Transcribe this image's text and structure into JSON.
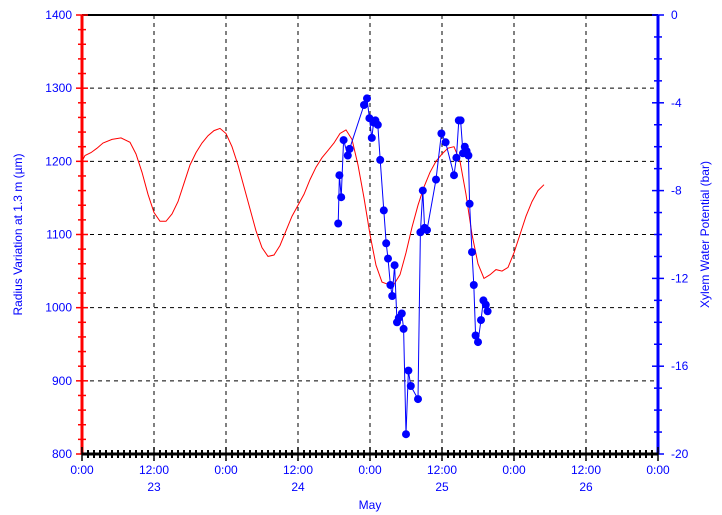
{
  "chart_data": {
    "type": "line",
    "title": "",
    "xlabel": "May",
    "ylabel_left": "Radius Variation at 1.3 m (µm)",
    "ylabel_right": "Xylem Water Potential  (bar)",
    "x_range_hours": [
      0,
      96
    ],
    "y_left_range": [
      800,
      1400
    ],
    "y_right_range": [
      -20,
      0
    ],
    "y_left_ticks": [
      "800",
      "900",
      "1000",
      "1100",
      "1200",
      "1300",
      "1400"
    ],
    "y_right_ticks": [
      "-20",
      "-16",
      "-12",
      "-8",
      "-4",
      "0"
    ],
    "x_ticks": [
      {
        "h": 0,
        "time": "0:00",
        "day": ""
      },
      {
        "h": 12,
        "time": "12:00",
        "day": "23"
      },
      {
        "h": 24,
        "time": "0:00",
        "day": ""
      },
      {
        "h": 36,
        "time": "12:00",
        "day": "24"
      },
      {
        "h": 48,
        "time": "0:00",
        "day": ""
      },
      {
        "h": 60,
        "time": "12:00",
        "day": "25"
      },
      {
        "h": 72,
        "time": "0:00",
        "day": ""
      },
      {
        "h": 84,
        "time": "12:00",
        "day": "26"
      },
      {
        "h": 96,
        "time": "0:00",
        "day": ""
      }
    ],
    "grid": true,
    "colors": {
      "left_axis": "#ff0000",
      "right_axis": "#0000ff",
      "radius_series": "#ff0000",
      "potential_series": "#0000ff",
      "grid": "#000000"
    },
    "series": [
      {
        "axis": "left",
        "color": "#ff0000",
        "points": [
          [
            0,
            1200
          ],
          [
            0.5,
            1208
          ],
          [
            1.5,
            1212
          ],
          [
            2.5,
            1218
          ],
          [
            3.5,
            1225
          ],
          [
            5,
            1230
          ],
          [
            6.5,
            1232
          ],
          [
            8,
            1226
          ],
          [
            9,
            1210
          ],
          [
            10,
            1185
          ],
          [
            11,
            1155
          ],
          [
            12,
            1130
          ],
          [
            13,
            1118
          ],
          [
            14,
            1118
          ],
          [
            15,
            1128
          ],
          [
            16,
            1145
          ],
          [
            17,
            1170
          ],
          [
            18,
            1195
          ],
          [
            19,
            1212
          ],
          [
            20,
            1225
          ],
          [
            21,
            1235
          ],
          [
            22,
            1242
          ],
          [
            23,
            1245
          ],
          [
            24,
            1238
          ],
          [
            25,
            1220
          ],
          [
            26,
            1195
          ],
          [
            27,
            1165
          ],
          [
            28,
            1135
          ],
          [
            29,
            1105
          ],
          [
            30,
            1082
          ],
          [
            31,
            1070
          ],
          [
            32,
            1072
          ],
          [
            33,
            1085
          ],
          [
            34,
            1105
          ],
          [
            35,
            1125
          ],
          [
            36,
            1140
          ],
          [
            37,
            1155
          ],
          [
            38,
            1175
          ],
          [
            39,
            1192
          ],
          [
            40,
            1205
          ],
          [
            41,
            1215
          ],
          [
            42,
            1225
          ],
          [
            43,
            1238
          ],
          [
            44,
            1243
          ],
          [
            45,
            1230
          ],
          [
            46,
            1195
          ],
          [
            47,
            1150
          ],
          [
            48,
            1100
          ],
          [
            49,
            1058
          ],
          [
            50,
            1035
          ],
          [
            51,
            1032
          ],
          [
            52,
            1032
          ],
          [
            53,
            1045
          ],
          [
            54,
            1075
          ],
          [
            55,
            1110
          ],
          [
            56,
            1140
          ],
          [
            57,
            1165
          ],
          [
            58,
            1185
          ],
          [
            59,
            1200
          ],
          [
            60,
            1210
          ],
          [
            61,
            1218
          ],
          [
            62,
            1220
          ],
          [
            63,
            1200
          ],
          [
            64,
            1155
          ],
          [
            65,
            1100
          ],
          [
            66,
            1060
          ],
          [
            67,
            1040
          ],
          [
            68,
            1045
          ],
          [
            69,
            1052
          ],
          [
            70,
            1050
          ],
          [
            71,
            1055
          ],
          [
            72,
            1075
          ],
          [
            73,
            1100
          ],
          [
            74,
            1125
          ],
          [
            75,
            1145
          ],
          [
            76,
            1160
          ],
          [
            77,
            1168
          ]
        ]
      },
      {
        "axis": "right",
        "color": "#0000ff",
        "points": [
          [
            42.7,
            -9.5
          ],
          [
            42.9,
            -7.3
          ],
          [
            43.2,
            -8.3
          ],
          [
            43.6,
            -5.7
          ],
          [
            44.3,
            -6.4
          ],
          [
            44.6,
            -6.1
          ],
          [
            47,
            -4.1
          ],
          [
            47.5,
            -3.8
          ],
          [
            47.9,
            -4.7
          ],
          [
            48.3,
            -5.6
          ],
          [
            48.6,
            -4.9
          ],
          [
            48.9,
            -4.8
          ],
          [
            49.3,
            -5.0
          ],
          [
            49.7,
            -6.6
          ],
          [
            50.3,
            -8.9
          ],
          [
            50.7,
            -10.4
          ],
          [
            51.0,
            -11.1
          ],
          [
            51.4,
            -12.3
          ],
          [
            51.7,
            -12.8
          ],
          [
            52.1,
            -11.4
          ],
          [
            52.5,
            -14.0
          ],
          [
            52.8,
            -13.8
          ],
          [
            53.3,
            -13.6
          ],
          [
            53.6,
            -14.3
          ],
          [
            54.0,
            -19.1
          ],
          [
            54.4,
            -16.2
          ],
          [
            54.8,
            -16.9
          ],
          [
            56.0,
            -17.5
          ],
          [
            56.4,
            -9.9
          ],
          [
            56.8,
            -8.0
          ],
          [
            57.1,
            -9.7
          ],
          [
            57.5,
            -9.8
          ],
          [
            59.0,
            -7.5
          ],
          [
            59.9,
            -5.4
          ],
          [
            60.6,
            -5.8
          ],
          [
            62.0,
            -7.3
          ],
          [
            62.4,
            -6.5
          ],
          [
            62.8,
            -4.8
          ],
          [
            63.1,
            -4.8
          ],
          [
            63.5,
            -6.3
          ],
          [
            63.8,
            -6.0
          ],
          [
            64.1,
            -6.2
          ],
          [
            64.4,
            -6.4
          ],
          [
            64.6,
            -8.6
          ],
          [
            65.0,
            -10.8
          ],
          [
            65.3,
            -12.3
          ],
          [
            65.6,
            -14.6
          ],
          [
            66.0,
            -14.9
          ],
          [
            66.5,
            -13.9
          ],
          [
            66.9,
            -13.0
          ],
          [
            67.3,
            -13.2
          ],
          [
            67.6,
            -13.5
          ]
        ]
      }
    ]
  }
}
